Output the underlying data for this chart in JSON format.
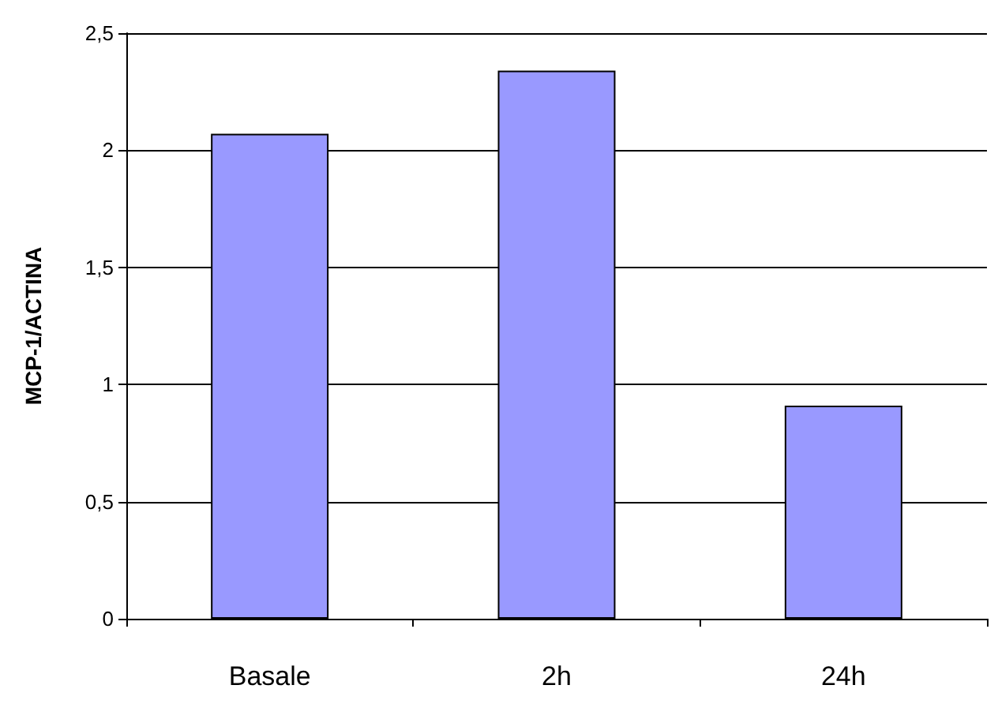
{
  "chart_data": {
    "type": "bar",
    "ylabel": "MCP-1/ACTINA",
    "categories": [
      "Basale",
      "2h",
      "24h"
    ],
    "values": [
      2.07,
      2.34,
      0.91
    ],
    "color": "#9999ff",
    "ylim": [
      0,
      2.5
    ],
    "yticks": [
      0,
      {
        "value": 0.5,
        "label": "0,5"
      },
      1,
      {
        "value": 1.5,
        "label": "1,5"
      },
      2,
      {
        "value": 2.5,
        "label": "2,5"
      }
    ],
    "grid": "y"
  }
}
